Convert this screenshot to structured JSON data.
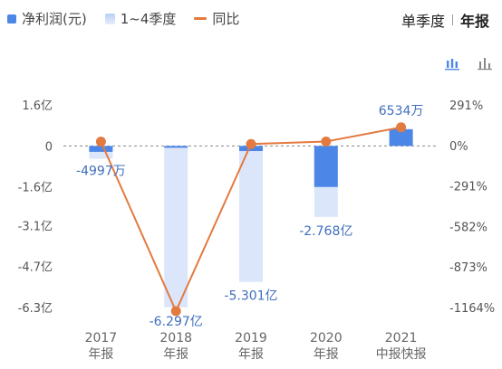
{
  "legend": {
    "net_profit": "净利润(元)",
    "quarters": "1~4季度",
    "yoy": "同比"
  },
  "toggle": {
    "quarterly": "单季度",
    "annual": "年报"
  },
  "icons": [
    "bar-chart-stacked-icon",
    "bar-chart-icon"
  ],
  "colors": {
    "net_profit": "#4c86e6",
    "quarter_bar": "#dbe6fa",
    "yoy_line": "#e37a40",
    "label_text": "#3f6fbf"
  },
  "chart_data": {
    "type": "bar",
    "categories": [
      [
        "2017",
        "年报"
      ],
      [
        "2018",
        "年报"
      ],
      [
        "2019",
        "年报"
      ],
      [
        "2020",
        "年报"
      ],
      [
        "2021",
        "中报快报"
      ]
    ],
    "left_ticks": [
      "1.6亿",
      "0",
      "-1.6亿",
      "-3.1亿",
      "-4.7亿",
      "-6.3亿"
    ],
    "left_tick_values": [
      1.6,
      0,
      -1.6,
      -3.1,
      -4.7,
      -6.3
    ],
    "right_ticks": [
      "291%",
      "0%",
      "-291%",
      "-582%",
      "-873%",
      "-1164%"
    ],
    "right_tick_values": [
      291,
      0,
      -291,
      -582,
      -873,
      -1164
    ],
    "ylim": [
      -6.3,
      1.6
    ],
    "ylim_right": [
      -1164,
      291
    ],
    "series": [
      {
        "name": "1~4季度",
        "values": [
          -0.4997,
          -6.297,
          -5.301,
          -2.768,
          0.6534
        ]
      },
      {
        "name": "净利润(元)",
        "values": [
          -0.23,
          -0.05,
          -0.2,
          -1.6,
          0.6534
        ]
      },
      {
        "name": "同比",
        "values": [
          27,
          -1190,
          10,
          28,
          130
        ]
      }
    ],
    "data_labels": [
      "-4997万",
      "-6.297亿",
      "-5.301亿",
      "-2.768亿",
      "6534万"
    ]
  }
}
